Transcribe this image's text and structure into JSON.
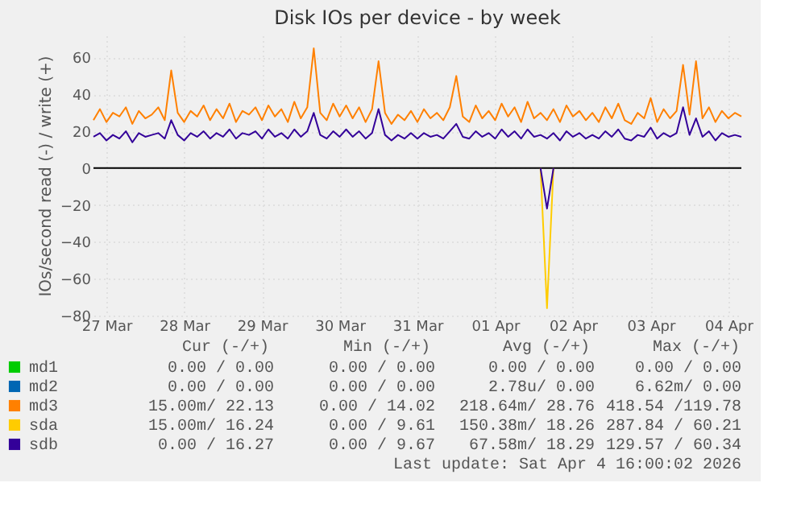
{
  "chart_data": {
    "type": "line",
    "title": "Disk IOs per device - by week",
    "ylabel": "IOs/second read (-) / write (+)",
    "x": [
      "2026-03-27T08:00",
      "2026-03-27T10:00",
      "2026-03-27T12:00",
      "2026-03-27T14:00",
      "2026-03-27T16:00",
      "2026-03-27T18:00",
      "2026-03-27T20:00",
      "2026-03-27T22:00",
      "2026-03-28T00:00",
      "2026-03-28T02:00",
      "2026-03-28T04:00",
      "2026-03-28T06:00",
      "2026-03-28T08:00",
      "2026-03-28T10:00",
      "2026-03-28T12:00",
      "2026-03-28T14:00",
      "2026-03-28T16:00",
      "2026-03-28T18:00",
      "2026-03-28T20:00",
      "2026-03-28T22:00",
      "2026-03-29T00:00",
      "2026-03-29T02:00",
      "2026-03-29T04:00",
      "2026-03-29T06:00",
      "2026-03-29T08:00",
      "2026-03-29T10:00",
      "2026-03-29T12:00",
      "2026-03-29T14:00",
      "2026-03-29T16:00",
      "2026-03-29T18:00",
      "2026-03-29T20:00",
      "2026-03-29T22:00",
      "2026-03-30T00:00",
      "2026-03-30T02:00",
      "2026-03-30T04:00",
      "2026-03-30T06:00",
      "2026-03-30T08:00",
      "2026-03-30T10:00",
      "2026-03-30T12:00",
      "2026-03-30T14:00",
      "2026-03-30T16:00",
      "2026-03-30T18:00",
      "2026-03-30T20:00",
      "2026-03-30T22:00",
      "2026-03-31T00:00",
      "2026-03-31T02:00",
      "2026-03-31T04:00",
      "2026-03-31T06:00",
      "2026-03-31T08:00",
      "2026-03-31T10:00",
      "2026-03-31T12:00",
      "2026-03-31T14:00",
      "2026-03-31T16:00",
      "2026-03-31T18:00",
      "2026-03-31T20:00",
      "2026-03-31T22:00",
      "2026-04-01T00:00",
      "2026-04-01T02:00",
      "2026-04-01T04:00",
      "2026-04-01T06:00",
      "2026-04-01T08:00",
      "2026-04-01T10:00",
      "2026-04-01T12:00",
      "2026-04-01T14:00",
      "2026-04-01T16:00",
      "2026-04-01T18:00",
      "2026-04-01T20:00",
      "2026-04-01T22:00",
      "2026-04-02T00:00",
      "2026-04-02T02:00",
      "2026-04-02T04:00",
      "2026-04-02T06:00",
      "2026-04-02T08:00",
      "2026-04-02T10:00",
      "2026-04-02T12:00",
      "2026-04-02T14:00",
      "2026-04-02T16:00",
      "2026-04-02T18:00",
      "2026-04-02T20:00",
      "2026-04-02T22:00",
      "2026-04-03T00:00",
      "2026-04-03T02:00",
      "2026-04-03T04:00",
      "2026-04-03T06:00",
      "2026-04-03T08:00",
      "2026-04-03T10:00",
      "2026-04-03T12:00",
      "2026-04-03T14:00",
      "2026-04-03T16:00",
      "2026-04-03T18:00",
      "2026-04-03T20:00",
      "2026-04-03T22:00",
      "2026-04-04T00:00",
      "2026-04-04T02:00",
      "2026-04-04T04:00",
      "2026-04-04T06:00",
      "2026-04-04T08:00",
      "2026-04-04T10:00",
      "2026-04-04T12:00",
      "2026-04-04T14:00",
      "2026-04-04T16:00"
    ],
    "series": [
      {
        "name": "md1",
        "color": "#00cc00",
        "values": [
          null,
          null,
          null,
          null,
          null,
          null,
          null,
          null,
          null,
          null,
          null,
          null,
          null,
          null,
          null,
          null,
          null,
          null,
          null,
          null,
          null,
          null,
          null,
          null,
          null,
          null,
          null,
          null,
          null,
          null,
          null,
          null,
          null,
          null,
          null,
          null,
          null,
          null,
          null,
          null,
          null,
          null,
          null,
          null,
          null,
          null,
          null,
          null,
          null,
          null,
          null,
          null,
          null,
          null,
          null,
          null,
          null,
          null,
          null,
          null,
          null,
          null,
          null,
          null,
          null,
          null,
          null,
          null,
          null,
          null,
          null,
          null,
          null,
          null,
          null,
          null,
          null,
          null,
          null,
          null,
          null,
          null,
          null,
          null,
          null,
          null,
          null,
          null,
          null,
          null,
          null,
          null,
          null,
          null,
          null,
          null,
          null,
          null,
          null,
          null,
          null
        ]
      },
      {
        "name": "md2",
        "color": "#0066b3",
        "values": [
          null,
          null,
          null,
          null,
          null,
          null,
          null,
          null,
          null,
          null,
          null,
          null,
          null,
          null,
          null,
          null,
          null,
          null,
          null,
          null,
          null,
          null,
          null,
          null,
          null,
          null,
          null,
          null,
          null,
          null,
          null,
          null,
          null,
          null,
          null,
          null,
          null,
          null,
          null,
          null,
          null,
          null,
          null,
          null,
          null,
          null,
          null,
          null,
          null,
          null,
          null,
          null,
          null,
          null,
          null,
          null,
          null,
          null,
          null,
          null,
          null,
          null,
          null,
          null,
          null,
          null,
          null,
          null,
          null,
          null,
          null,
          null,
          null,
          null,
          null,
          null,
          null,
          null,
          null,
          null,
          null,
          null,
          null,
          null,
          null,
          null,
          null,
          null,
          null,
          null,
          null,
          null,
          null,
          null,
          null,
          null,
          null,
          null,
          null,
          null,
          null
        ]
      },
      {
        "name": "md3",
        "color": "#ff8000",
        "values": [
          26,
          32,
          25,
          30,
          28,
          33,
          24,
          31,
          27,
          29,
          33,
          26,
          53,
          30,
          25,
          31,
          28,
          34,
          26,
          32,
          27,
          35,
          25,
          31,
          29,
          33,
          26,
          34,
          28,
          32,
          25,
          36,
          27,
          33,
          65,
          30,
          26,
          35,
          28,
          34,
          27,
          33,
          25,
          32,
          58,
          30,
          24,
          29,
          26,
          31,
          25,
          32,
          27,
          30,
          26,
          33,
          50,
          28,
          25,
          34,
          27,
          31,
          26,
          35,
          28,
          33,
          25,
          36,
          27,
          30,
          26,
          32,
          25,
          34,
          28,
          31,
          26,
          30,
          25,
          33,
          27,
          35,
          26,
          24,
          30,
          27,
          38,
          25,
          32,
          27,
          31,
          56,
          29,
          58,
          27,
          33,
          25,
          31,
          27,
          30,
          28
        ]
      },
      {
        "name": "sda",
        "color": "#ffcc00",
        "x": [
          "2026-04-02T02:00",
          "2026-04-02T04:00",
          "2026-04-02T06:00"
        ],
        "values": [
          0,
          -76,
          0
        ]
      },
      {
        "name": "sdb",
        "color": "#330099",
        "values": [
          17,
          19,
          15,
          18,
          16,
          20,
          14,
          19,
          17,
          18,
          19,
          16,
          26,
          18,
          15,
          19,
          17,
          20,
          16,
          19,
          17,
          21,
          16,
          19,
          18,
          20,
          16,
          21,
          17,
          19,
          16,
          21,
          17,
          20,
          30,
          18,
          16,
          20,
          17,
          21,
          17,
          20,
          16,
          19,
          32,
          18,
          15,
          18,
          16,
          19,
          16,
          19,
          17,
          18,
          16,
          20,
          24,
          17,
          16,
          20,
          17,
          19,
          16,
          21,
          17,
          20,
          16,
          21,
          17,
          18,
          16,
          19,
          15,
          20,
          17,
          19,
          16,
          18,
          16,
          20,
          17,
          21,
          16,
          15,
          18,
          17,
          22,
          16,
          19,
          17,
          19,
          33,
          18,
          27,
          17,
          20,
          15,
          19,
          17,
          18,
          17
        ]
      },
      {
        "color": "#330099",
        "x": [
          "2026-04-02T02:00",
          "2026-04-02T04:00",
          "2026-04-02T06:00"
        ],
        "values": [
          0,
          -22,
          0
        ]
      }
    ],
    "xlim": [
      "2026-03-27T08:00",
      "2026-04-04T16:00"
    ],
    "xticks": [
      {
        "value": "2026-03-27T12:00",
        "label": "27 Mar"
      },
      {
        "value": "2026-03-28T12:00",
        "label": "28 Mar"
      },
      {
        "value": "2026-03-29T12:00",
        "label": "29 Mar"
      },
      {
        "value": "2026-03-30T12:00",
        "label": "30 Mar"
      },
      {
        "value": "2026-03-31T12:00",
        "label": "31 Mar"
      },
      {
        "value": "2026-04-01T12:00",
        "label": "01 Apr"
      },
      {
        "value": "2026-04-02T12:00",
        "label": "02 Apr"
      },
      {
        "value": "2026-04-03T12:00",
        "label": "03 Apr"
      },
      {
        "value": "2026-04-04T12:00",
        "label": "04 Apr"
      }
    ],
    "ylim": [
      -80,
      72
    ],
    "yticks": [
      -80,
      -60,
      -40,
      -20,
      0,
      20,
      40,
      60
    ],
    "ref_lines": [
      {
        "axis": "y",
        "value": 0,
        "color": "#000000"
      }
    ],
    "grid": true,
    "legend": "bottom",
    "marker": "none",
    "line_style": "solid",
    "annotations": [
      "Cur (-/+)",
      "Min (-/+)",
      "Avg (-/+)",
      "Max (-/+)",
      "0.00 /  0.00",
      "0.00 /  0.00",
      "0.00 /  0.00",
      "0.00 /  0.00",
      "0.00 /  0.00",
      "0.00 /  0.00",
      "2.78u/  0.00",
      "6.62m/  0.00",
      "15.00m/ 22.13",
      "0.00 / 14.02",
      "218.64m/ 28.76",
      "418.54 /119.78",
      "15.00m/ 16.24",
      "0.00 /  9.61",
      "150.38m/ 18.26",
      "287.84 / 60.21",
      "0.00 / 16.27",
      "0.00 /  9.67",
      "67.58m/ 18.29",
      "129.57 / 60.34",
      "Last update: Sat Apr  4 16:00:02 2026"
    ]
  }
}
